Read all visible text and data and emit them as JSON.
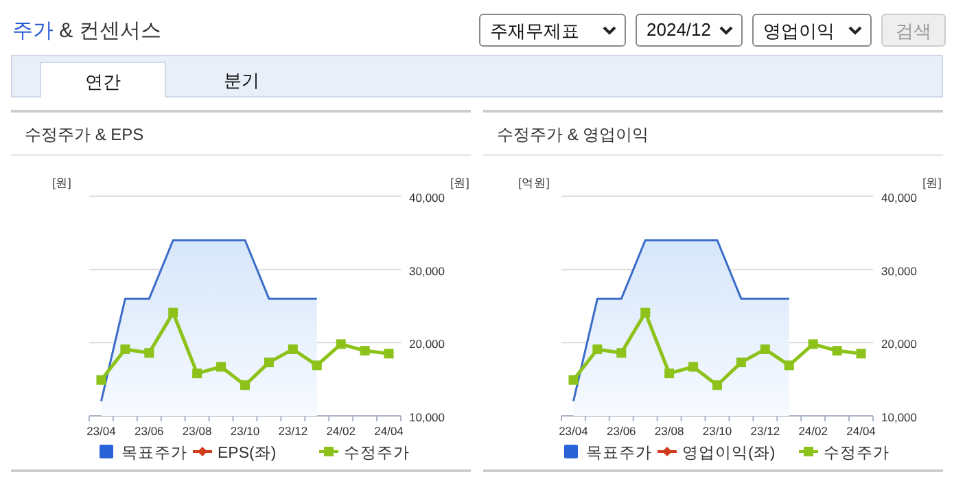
{
  "chart_data": [
    {
      "type": "other",
      "title": "주가 & 컨센서스",
      "annotations": [
        "주재무제표",
        "2024/12",
        "영업이익",
        "검색",
        "연간",
        "분기"
      ]
    },
    {
      "type": "line",
      "title": "수정주가 & EPS",
      "ylabel": "[원]",
      "y2label": "[원]",
      "categories": [
        "23/04",
        null,
        "23/06",
        null,
        "23/08",
        null,
        "23/10",
        null,
        "23/12",
        null,
        "24/02",
        null,
        "24/04"
      ],
      "y2lim": [
        10000,
        40000
      ],
      "y2ticks": [
        {
          "value": 10000,
          "label": "10,000"
        },
        {
          "value": 20000,
          "label": "20,000"
        },
        {
          "value": 30000,
          "label": "30,000"
        },
        {
          "value": 40000,
          "label": "40,000"
        }
      ],
      "grid": "y",
      "legend": "bottom",
      "series": [
        {
          "name": "목표주가",
          "type": "area",
          "axis": "y2",
          "color": "#3a6cc8",
          "marker": "none",
          "values": [
            12000,
            26000,
            26000,
            34000,
            34000,
            34000,
            34000,
            26000,
            26000,
            26000,
            null,
            null,
            null
          ]
        },
        {
          "name": "EPS(좌)",
          "type": "line",
          "axis": "y",
          "color": "#d23c1e",
          "marker": "diamond",
          "values": [
            null,
            null,
            null,
            null,
            null,
            null,
            null,
            null,
            null,
            null,
            null,
            null,
            null
          ]
        },
        {
          "name": "수정주가",
          "type": "line",
          "axis": "y2",
          "color": "#8cc21a",
          "marker": "square",
          "values": [
            14900,
            19100,
            18600,
            24100,
            15800,
            16700,
            14200,
            17300,
            19100,
            16900,
            19800,
            18900,
            18500
          ]
        }
      ]
    },
    {
      "type": "line",
      "title": "수정주가 & 영업이익",
      "ylabel": "[억원]",
      "y2label": "[원]",
      "categories": [
        "23/04",
        null,
        "23/06",
        null,
        "23/08",
        null,
        "23/10",
        null,
        "23/12",
        null,
        "24/02",
        null,
        "24/04"
      ],
      "y2lim": [
        10000,
        40000
      ],
      "y2ticks": [
        {
          "value": 10000,
          "label": "10,000"
        },
        {
          "value": 20000,
          "label": "20,000"
        },
        {
          "value": 30000,
          "label": "30,000"
        },
        {
          "value": 40000,
          "label": "40,000"
        }
      ],
      "grid": "y",
      "legend": "bottom",
      "series": [
        {
          "name": "목표주가",
          "type": "area",
          "axis": "y2",
          "color": "#3a6cc8",
          "marker": "none",
          "values": [
            12000,
            26000,
            26000,
            34000,
            34000,
            34000,
            34000,
            26000,
            26000,
            26000,
            null,
            null,
            null
          ]
        },
        {
          "name": "영업이익(좌)",
          "type": "line",
          "axis": "y",
          "color": "#d23c1e",
          "marker": "diamond",
          "values": [
            null,
            null,
            null,
            null,
            null,
            null,
            null,
            null,
            null,
            null,
            null,
            null,
            null
          ]
        },
        {
          "name": "수정주가",
          "type": "line",
          "axis": "y2",
          "color": "#8cc21a",
          "marker": "square",
          "values": [
            14900,
            19100,
            18600,
            24100,
            15800,
            16700,
            14200,
            17300,
            19100,
            16900,
            19800,
            18900,
            18500
          ]
        }
      ]
    }
  ]
}
